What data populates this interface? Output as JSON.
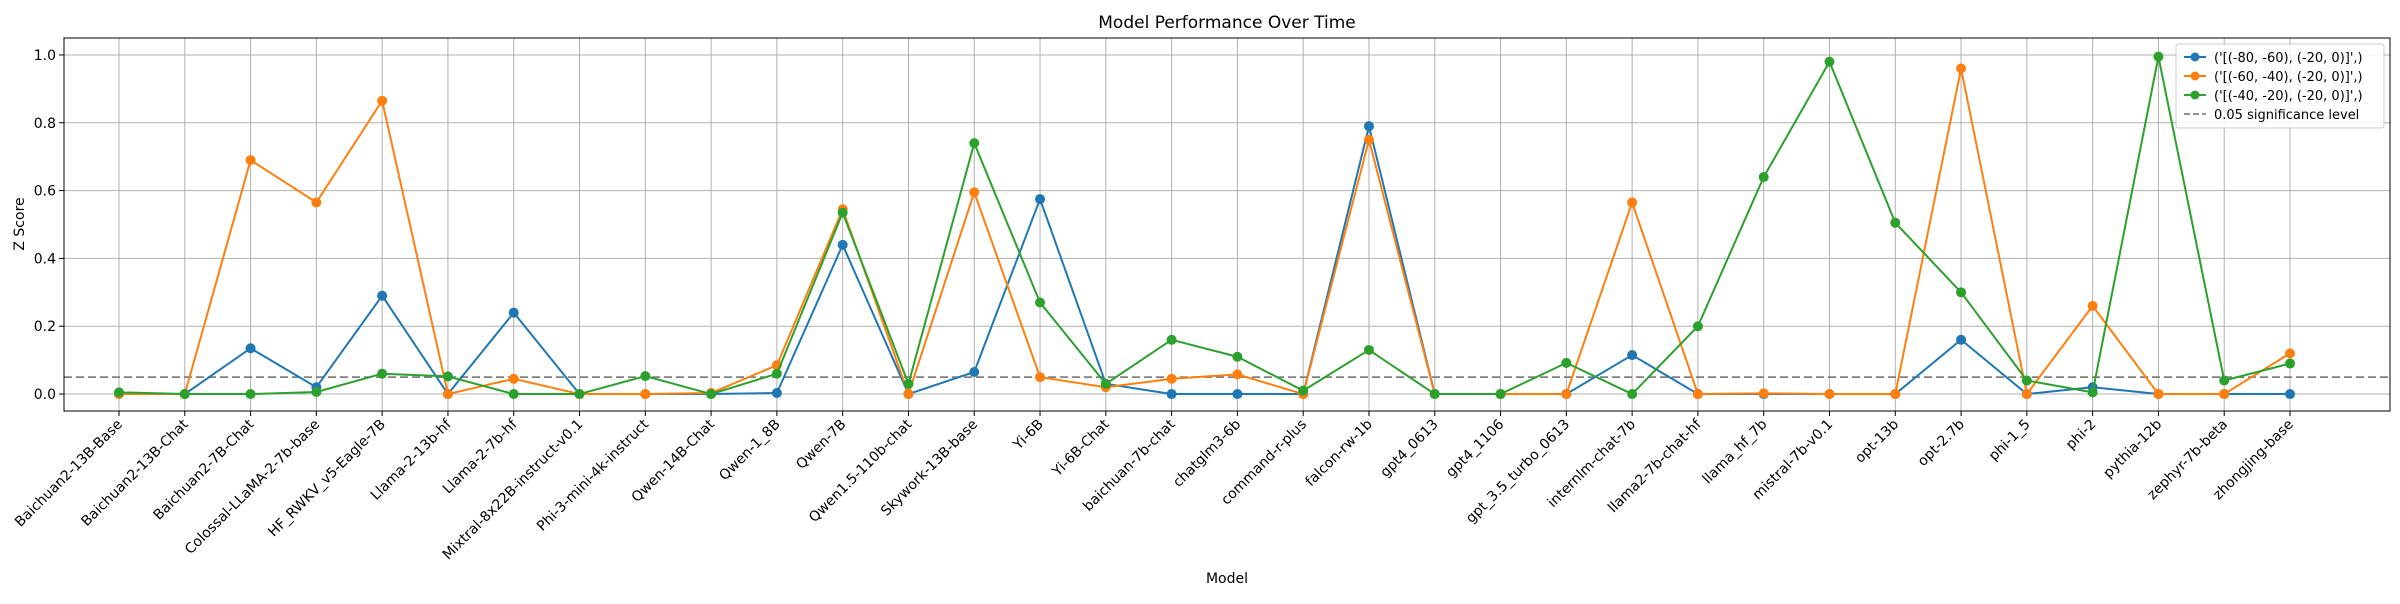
{
  "chart_data": {
    "type": "line",
    "title": "Model Performance Over Time",
    "xlabel": "Model",
    "ylabel": "Z Score",
    "ylim": [
      -0.05,
      1.05
    ],
    "yticks": [
      "0.0",
      "0.2",
      "0.4",
      "0.6",
      "0.8",
      "1.0"
    ],
    "grid": true,
    "legend_position": "top-right",
    "categories": [
      "Baichuan2-13B-Base",
      "Baichuan2-13B-Chat",
      "Baichuan2-7B-Chat",
      "Colossal-LLaMA-2-7b-base",
      "HF_RWKV_v5-Eagle-7B",
      "Llama-2-13b-hf",
      "Llama-2-7b-hf",
      "Mixtral-8x22B-instruct-v0.1",
      "Phi-3-mini-4k-instruct",
      "Qwen-14B-Chat",
      "Qwen-1_8B",
      "Qwen-7B",
      "Qwen1.5-110b-chat",
      "Skywork-13B-base",
      "Yi-6B",
      "Yi-6B-Chat",
      "baichuan-7b-chat",
      "chatglm3-6b",
      "command-r-plus",
      "falcon-rw-1b",
      "gpt4_0613",
      "gpt4_1106",
      "gpt_3.5_turbo_0613",
      "internlm-chat-7b",
      "llama2-7b-chat-hf",
      "llama_hf_7b",
      "mistral-7b-v0.1",
      "opt-13b",
      "opt-2.7b",
      "phi-1_5",
      "phi-2",
      "pythia-12b",
      "zephyr-7b-beta",
      "zhongjing-base"
    ],
    "series": [
      {
        "name": "('[(-80, -60), (-20, 0)]',)",
        "color": "#1f77b4",
        "values": [
          0.0,
          0.0,
          0.135,
          0.02,
          0.29,
          0.0,
          0.24,
          0.0,
          0.0,
          0.0,
          0.003,
          0.44,
          0.0,
          0.065,
          0.575,
          0.03,
          0.0,
          0.0,
          0.0,
          0.79,
          0.0,
          0.0,
          0.0,
          0.115,
          0.0,
          0.0,
          0.0,
          0.0,
          0.16,
          0.0,
          0.02,
          0.0,
          0.0,
          0.0
        ]
      },
      {
        "name": "('[(-60, -40), (-20, 0)]',)",
        "color": "#ff7f0e",
        "values": [
          0.0,
          0.0,
          0.69,
          0.565,
          0.865,
          0.0,
          0.045,
          0.0,
          0.0,
          0.003,
          0.085,
          0.545,
          0.0,
          0.595,
          0.05,
          0.02,
          0.045,
          0.058,
          0.0,
          0.75,
          0.0,
          0.0,
          0.0,
          0.565,
          0.0,
          0.002,
          0.0,
          0.0,
          0.96,
          0.0,
          0.26,
          0.0,
          0.0,
          0.12
        ]
      },
      {
        "name": "('[(-40, -20), (-20, 0)]',)",
        "color": "#2ca02c",
        "values": [
          0.005,
          0.0,
          0.0,
          0.006,
          0.06,
          0.052,
          0.0,
          0.0,
          0.053,
          0.0,
          0.06,
          0.535,
          0.03,
          0.74,
          0.27,
          0.03,
          0.16,
          0.11,
          0.01,
          0.13,
          0.0,
          0.0,
          0.092,
          0.0,
          0.2,
          0.64,
          0.98,
          0.505,
          0.3,
          0.04,
          0.005,
          0.995,
          0.04,
          0.09
        ]
      }
    ],
    "reference_line": {
      "label": "0.05 significance level",
      "value": 0.05,
      "color": "#808080"
    }
  }
}
